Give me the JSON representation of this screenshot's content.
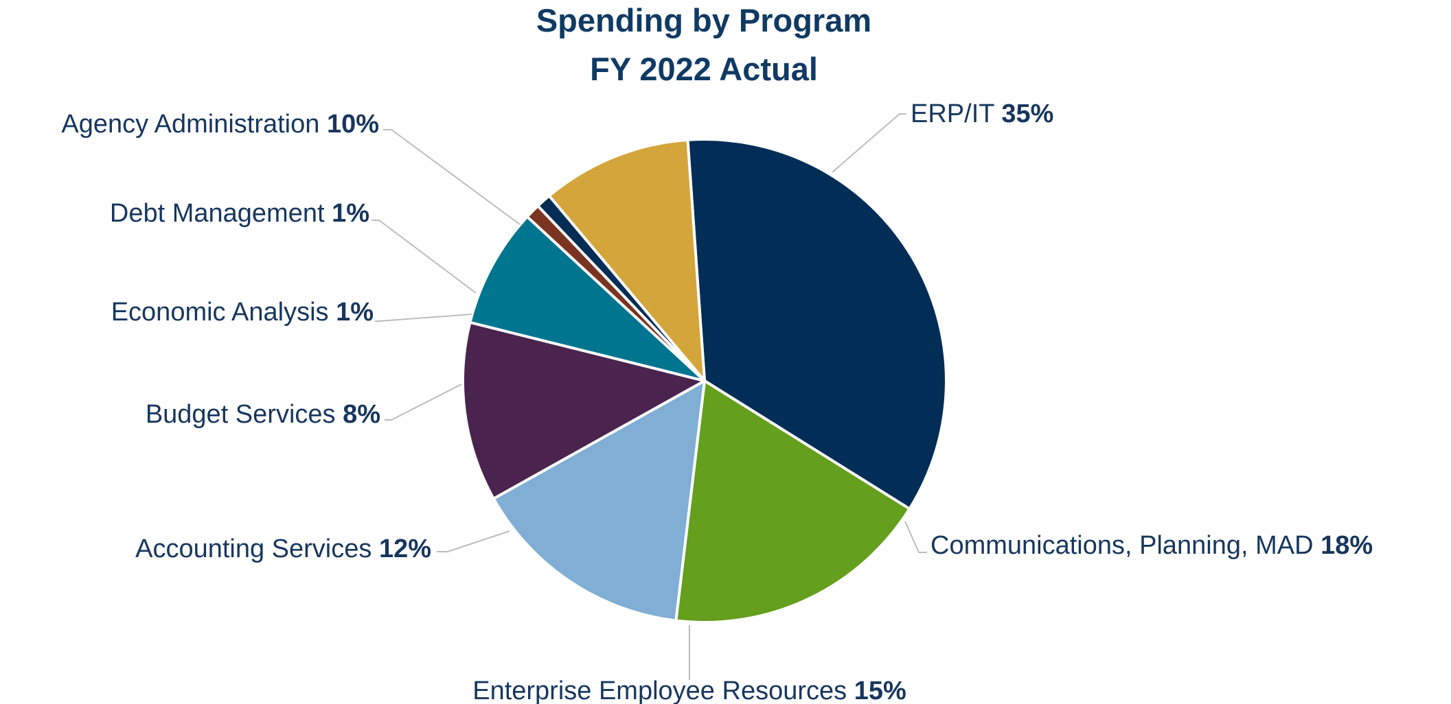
{
  "chart_data": {
    "type": "pie",
    "title": "Spending by Program",
    "subtitle": "FY 2022 Actual",
    "slices": [
      {
        "label": "ERP/IT",
        "value": 35,
        "value_label": "35%",
        "color": "#012d56"
      },
      {
        "label": "Communications, Planning, MAD",
        "value": 18,
        "value_label": "18%",
        "color": "#649f1d"
      },
      {
        "label": "Enterprise Employee Resources",
        "value": 15,
        "value_label": "15%",
        "color": "#80aed5"
      },
      {
        "label": "Accounting Services",
        "value": 12,
        "value_label": "12%",
        "color": "#4a234f"
      },
      {
        "label": "Budget Services",
        "value": 8,
        "value_label": "8%",
        "color": "#00758f"
      },
      {
        "label": "Economic Analysis",
        "value": 1,
        "value_label": "1%",
        "color": "#7a3421"
      },
      {
        "label": "Debt Management",
        "value": 1,
        "value_label": "1%",
        "color": "#062d55"
      },
      {
        "label": "Agency Administration",
        "value": 10,
        "value_label": "10%",
        "color": "#d4a53b"
      }
    ]
  }
}
